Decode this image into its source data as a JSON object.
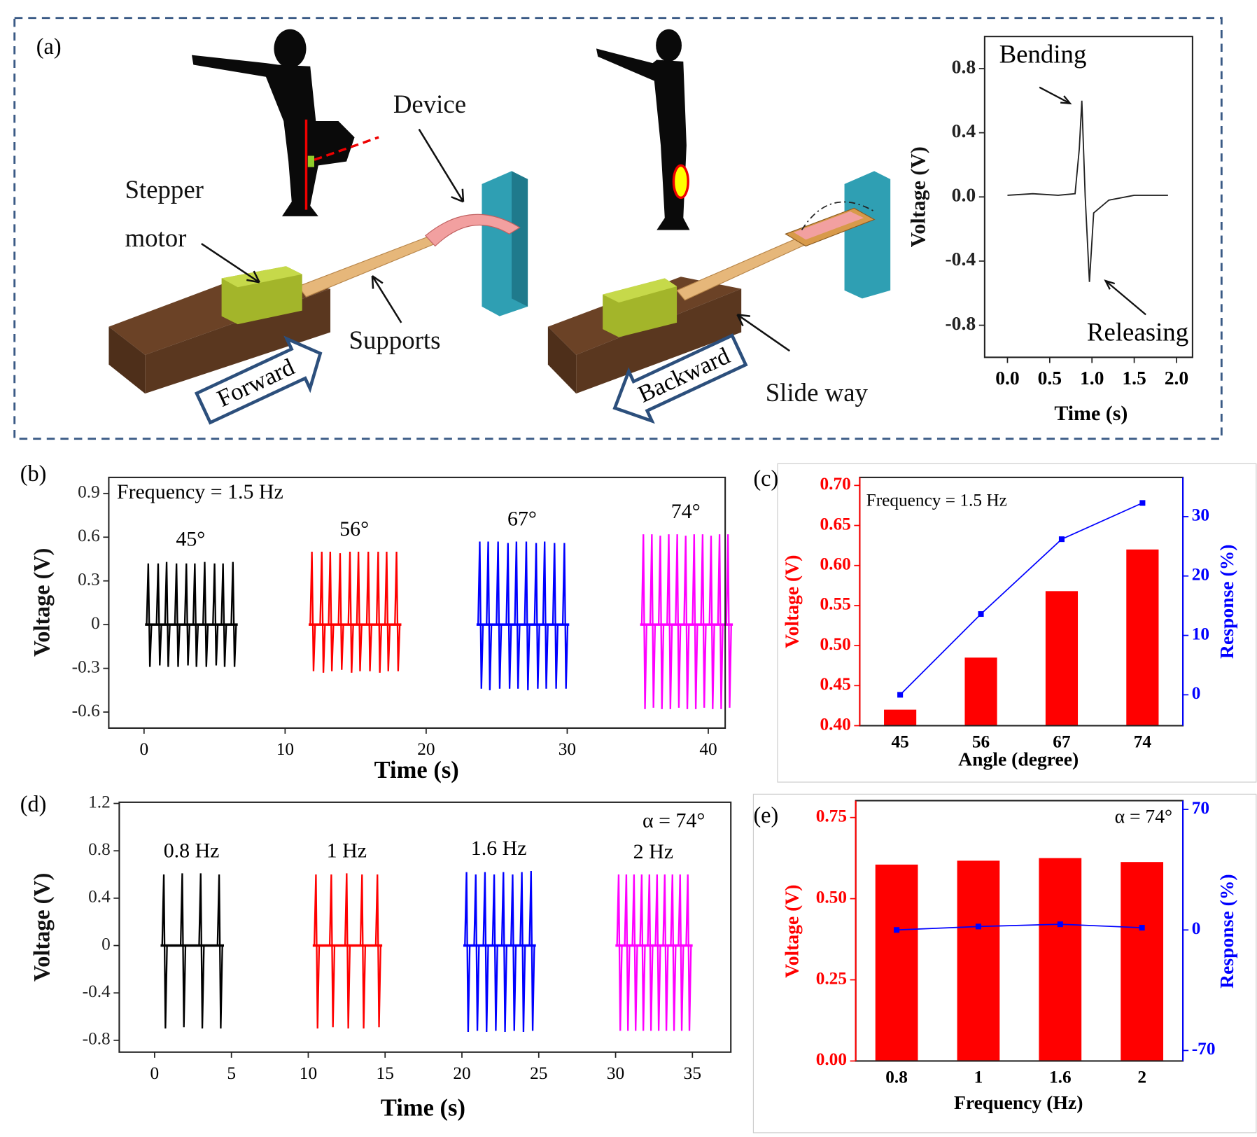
{
  "panel_a": {
    "label": "(a)",
    "device": "Device",
    "stepper": "Stepper",
    "motor": "motor",
    "supports": "Supports",
    "forward": "Forward",
    "backward": "Backward",
    "slide_way": "Slide way"
  },
  "chart_data": [
    {
      "type": "line",
      "xlabel": "Time (s)",
      "ylabel": "Voltage (V)",
      "annotations": [
        "Bending",
        "Releasing"
      ],
      "x": [
        0.0,
        0.3,
        0.6,
        0.8,
        0.85,
        0.88,
        0.92,
        0.97,
        1.02,
        1.2,
        1.5,
        1.9
      ],
      "values": [
        0.01,
        0.02,
        0.01,
        0.02,
        0.3,
        0.6,
        0.0,
        -0.53,
        -0.1,
        -0.02,
        0.01,
        0.01
      ],
      "color": "#222222",
      "xlim": [
        -0.27,
        2.19
      ],
      "xticks": [
        {
          "value": 0,
          "label": "0.0"
        },
        0.5,
        {
          "value": 1,
          "label": "1.0"
        },
        1.5,
        {
          "value": 2,
          "label": "2.0"
        }
      ],
      "ylim": [
        -1.0,
        1.0
      ],
      "yticks": [
        0.8,
        0.4,
        {
          "value": 0,
          "label": "0.0"
        },
        -0.4,
        -0.8
      ]
    },
    {
      "type": "pulse",
      "panel_label": "(b)",
      "xlabel": "Time (s)",
      "ylabel": "Voltage (V)",
      "annotations": [
        "Frequency = 1.5 Hz"
      ],
      "xlim": [
        -2.5,
        41.2
      ],
      "xticks": [
        0,
        10,
        20,
        30,
        40
      ],
      "ylim": [
        -0.71,
        1.01
      ],
      "yticks": [
        0.9,
        0.6,
        0.3,
        0,
        -0.3,
        -0.6
      ],
      "series": [
        {
          "name": "45°",
          "color": "#000000",
          "x": [
            0.3,
            1.0,
            1.6,
            2.3,
            3.0,
            3.6,
            4.3,
            5.0,
            5.6,
            6.3
          ],
          "values": [
            0.42,
            0.42,
            0.43,
            0.42,
            0.42,
            0.42,
            0.43,
            0.42,
            0.42,
            0.43
          ],
          "troughs": [
            -0.29,
            -0.28,
            -0.29,
            -0.29,
            -0.28,
            -0.29,
            -0.29,
            -0.28,
            -0.29,
            -0.29
          ]
        },
        {
          "name": "56°",
          "color": "#ff0000",
          "x": [
            11.9,
            12.6,
            13.2,
            13.9,
            14.6,
            15.2,
            15.9,
            16.6,
            17.2,
            17.9
          ],
          "values": [
            0.5,
            0.5,
            0.5,
            0.49,
            0.5,
            0.5,
            0.5,
            0.5,
            0.5,
            0.5
          ],
          "troughs": [
            -0.32,
            -0.33,
            -0.32,
            -0.31,
            -0.33,
            -0.32,
            -0.32,
            -0.33,
            -0.32,
            -0.32
          ]
        },
        {
          "name": "67°",
          "color": "#0000ff",
          "x": [
            23.8,
            24.4,
            25.1,
            25.8,
            26.4,
            27.1,
            27.8,
            28.4,
            29.1,
            29.8
          ],
          "values": [
            0.57,
            0.57,
            0.57,
            0.56,
            0.57,
            0.57,
            0.56,
            0.57,
            0.56,
            0.56
          ],
          "troughs": [
            -0.44,
            -0.45,
            -0.44,
            -0.44,
            -0.44,
            -0.45,
            -0.44,
            -0.44,
            -0.44,
            -0.44
          ]
        },
        {
          "name": "74°",
          "color": "#ff00ff",
          "x": [
            35.4,
            36.0,
            36.6,
            37.2,
            37.8,
            38.4,
            39.0,
            39.6,
            40.2,
            40.8,
            41.4
          ],
          "values": [
            0.62,
            0.62,
            0.61,
            0.62,
            0.62,
            0.61,
            0.62,
            0.62,
            0.61,
            0.62,
            0.62
          ],
          "troughs": [
            -0.58,
            -0.57,
            -0.58,
            -0.58,
            -0.57,
            -0.58,
            -0.58,
            -0.57,
            -0.58,
            -0.58,
            -0.57
          ]
        }
      ]
    },
    {
      "type": "bar",
      "panel_label": "(c)",
      "xlabel": "Angle (degree)",
      "ylabel": "Voltage (V)",
      "y2label": "Response (%)",
      "ycolor": "#ff0000",
      "y2color": "#0000ff",
      "annotations": [
        "Frequency = 1.5 Hz"
      ],
      "categories": [
        "45",
        "56",
        "67",
        "74"
      ],
      "ylim": [
        0.4,
        0.71
      ],
      "yticks": [
        {
          "value": 0.4,
          "label": "0.40"
        },
        0.45,
        {
          "value": 0.5,
          "label": "0.50"
        },
        0.55,
        {
          "value": 0.6,
          "label": "0.60"
        },
        0.65,
        {
          "value": 0.7,
          "label": "0.70"
        }
      ],
      "y2lim": [
        -5.2,
        36.6
      ],
      "y2ticks": [
        0,
        10,
        20,
        30
      ],
      "series": [
        {
          "color": "#ff0000",
          "values": [
            0.42,
            0.485,
            0.568,
            0.62
          ]
        },
        {
          "color": "#0000ff",
          "axis": "y2",
          "values": [
            0,
            13.6,
            26.2,
            32.3
          ]
        }
      ]
    },
    {
      "type": "pulse",
      "panel_label": "(d)",
      "xlabel": "Time (s)",
      "ylabel": "Voltage (V)",
      "annotations": [
        "α = 74°"
      ],
      "xlim": [
        -2.3,
        37.5
      ],
      "xticks": [
        0,
        5,
        10,
        15,
        20,
        25,
        30,
        35
      ],
      "ylim": [
        -0.9,
        1.21
      ],
      "yticks": [
        1.2,
        0.8,
        0.4,
        0,
        -0.4,
        -0.8
      ],
      "series": [
        {
          "name": "0.8 Hz",
          "color": "#000000",
          "x": [
            0.6,
            1.8,
            3.0,
            4.2
          ],
          "values": [
            0.6,
            0.61,
            0.61,
            0.6
          ],
          "troughs": [
            -0.7,
            -0.69,
            -0.7,
            -0.7
          ]
        },
        {
          "name": "1 Hz",
          "color": "#ff0000",
          "x": [
            10.5,
            11.5,
            12.5,
            13.5,
            14.5
          ],
          "values": [
            0.6,
            0.6,
            0.61,
            0.6,
            0.6
          ],
          "troughs": [
            -0.7,
            -0.69,
            -0.7,
            -0.7,
            -0.69
          ]
        },
        {
          "name": "1.6 Hz",
          "color": "#0000ff",
          "x": [
            20.3,
            20.9,
            21.5,
            22.1,
            22.7,
            23.3,
            23.9,
            24.5
          ],
          "values": [
            0.62,
            0.6,
            0.62,
            0.6,
            0.62,
            0.6,
            0.62,
            0.63
          ],
          "troughs": [
            -0.73,
            -0.72,
            -0.73,
            -0.72,
            -0.73,
            -0.72,
            -0.73,
            -0.72
          ]
        },
        {
          "name": "2 Hz",
          "color": "#ff00ff",
          "x": [
            30.2,
            30.7,
            31.2,
            31.7,
            32.2,
            32.7,
            33.2,
            33.7,
            34.2,
            34.7
          ],
          "values": [
            0.6,
            0.6,
            0.6,
            0.6,
            0.6,
            0.6,
            0.6,
            0.6,
            0.6,
            0.6
          ],
          "troughs": [
            -0.72,
            -0.72,
            -0.72,
            -0.72,
            -0.72,
            -0.72,
            -0.72,
            -0.72,
            -0.72,
            -0.72
          ]
        }
      ]
    },
    {
      "type": "bar",
      "panel_label": "(e)",
      "xlabel": "Frequency (Hz)",
      "ylabel": "Voltage (V)",
      "y2label": "Response (%)",
      "ycolor": "#ff0000",
      "y2color": "#0000ff",
      "annotations": [
        "α = 74°"
      ],
      "categories": [
        "0.8",
        "1",
        "1.6",
        "2"
      ],
      "ylim": [
        0,
        0.802
      ],
      "yticks": [
        {
          "value": 0,
          "label": "0.00"
        },
        0.25,
        {
          "value": 0.5,
          "label": "0.50"
        },
        0.75
      ],
      "y2lim": [
        -76.1,
        75.1
      ],
      "y2ticks": [
        70,
        0,
        -70
      ],
      "series": [
        {
          "color": "#ff0000",
          "values": [
            0.605,
            0.617,
            0.625,
            0.613
          ]
        },
        {
          "color": "#0000ff",
          "axis": "y2",
          "values": [
            0,
            2.0,
            3.3,
            1.3
          ]
        }
      ]
    }
  ]
}
